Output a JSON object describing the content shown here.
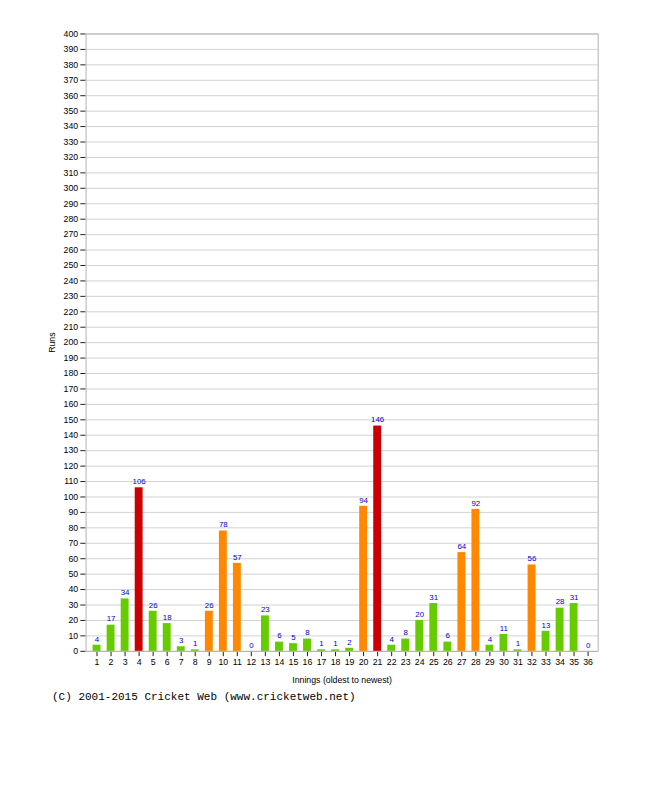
{
  "chart_data": {
    "type": "bar",
    "xlabel": "Innings (oldest to newest)",
    "ylabel": "Runs",
    "caption": "(C) 2001-2015 Cricket Web (www.cricketweb.net)",
    "categories": [
      "1",
      "2",
      "3",
      "4",
      "5",
      "6",
      "7",
      "8",
      "9",
      "10",
      "11",
      "12",
      "13",
      "14",
      "15",
      "16",
      "17",
      "18",
      "19",
      "20",
      "21",
      "22",
      "23",
      "24",
      "25",
      "26",
      "27",
      "28",
      "29",
      "30",
      "31",
      "32",
      "33",
      "34",
      "35",
      "36"
    ],
    "values": [
      4,
      17,
      34,
      106,
      26,
      18,
      3,
      1,
      26,
      78,
      57,
      0,
      23,
      6,
      5,
      8,
      1,
      1,
      2,
      94,
      146,
      4,
      8,
      20,
      31,
      6,
      64,
      92,
      4,
      11,
      1,
      56,
      13,
      28,
      31,
      0
    ],
    "colors": [
      "#66cc00",
      "#66cc00",
      "#66cc00",
      "#cc0000",
      "#66cc00",
      "#66cc00",
      "#66cc00",
      "#66cc00",
      "#ff8800",
      "#ff8800",
      "#ff8800",
      "#ff8800",
      "#66cc00",
      "#66cc00",
      "#66cc00",
      "#66cc00",
      "#66cc00",
      "#66cc00",
      "#66cc00",
      "#ff8800",
      "#cc0000",
      "#66cc00",
      "#66cc00",
      "#66cc00",
      "#66cc00",
      "#66cc00",
      "#ff8800",
      "#ff8800",
      "#66cc00",
      "#66cc00",
      "#66cc00",
      "#ff8800",
      "#66cc00",
      "#66cc00",
      "#66cc00",
      "#66cc00"
    ],
    "ylim": [
      0,
      400
    ],
    "yticks": [
      0,
      10,
      20,
      30,
      40,
      50,
      60,
      70,
      80,
      90,
      100,
      110,
      120,
      130,
      140,
      150,
      160,
      170,
      180,
      190,
      200,
      210,
      220,
      230,
      240,
      250,
      260,
      270,
      280,
      290,
      300,
      310,
      320,
      330,
      340,
      350,
      360,
      370,
      380,
      390,
      400
    ],
    "grid": true,
    "data_labels": true
  }
}
